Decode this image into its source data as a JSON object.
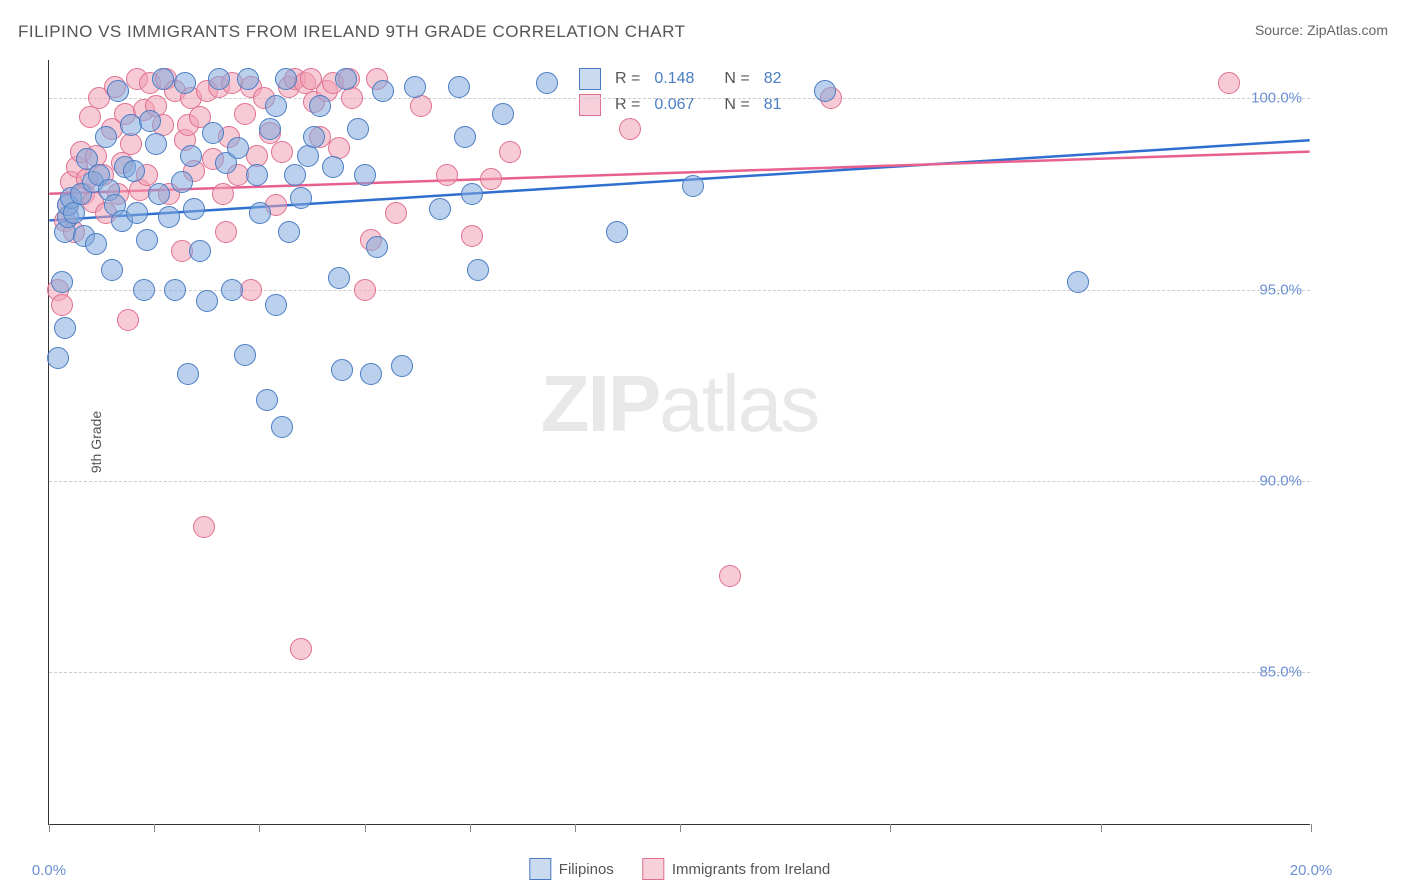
{
  "title": "FILIPINO VS IMMIGRANTS FROM IRELAND 9TH GRADE CORRELATION CHART",
  "source": "Source: ZipAtlas.com",
  "ylabel": "9th Grade",
  "watermark_zip": "ZIP",
  "watermark_atlas": "atlas",
  "chart": {
    "type": "scatter",
    "xlim": [
      0,
      20
    ],
    "ylim": [
      81,
      101
    ],
    "background_color": "#ffffff",
    "grid_color": "#cccccc",
    "grid_dash": true,
    "ytick_values": [
      85.0,
      90.0,
      95.0,
      100.0
    ],
    "ytick_labels": [
      "85.0%",
      "90.0%",
      "95.0%",
      "100.0%"
    ],
    "xtick_positions": [
      0,
      1.67,
      3.33,
      5.0,
      6.67,
      8.33,
      10.0,
      13.33,
      16.67,
      20.0
    ],
    "xtick_labels": {
      "0": "0.0%",
      "20": "20.0%"
    },
    "marker_radius": 11,
    "marker_opacity": 0.55,
    "series": [
      {
        "name": "Filipinos",
        "key": "blue",
        "color": "#87aee0",
        "border_color": "#4a7dc4",
        "r": "0.148",
        "n": "82",
        "trend": {
          "x1": 0,
          "y1": 96.8,
          "x2": 20,
          "y2": 98.9,
          "color": "#2f6fd0",
          "width": 2.5
        },
        "points": [
          [
            0.15,
            93.2
          ],
          [
            0.2,
            95.2
          ],
          [
            0.25,
            96.5
          ],
          [
            0.3,
            96.9
          ],
          [
            0.3,
            97.2
          ],
          [
            0.35,
            97.4
          ],
          [
            0.25,
            94.0
          ],
          [
            0.4,
            97.0
          ],
          [
            0.5,
            97.5
          ],
          [
            0.55,
            96.4
          ],
          [
            0.6,
            98.4
          ],
          [
            0.7,
            97.8
          ],
          [
            0.75,
            96.2
          ],
          [
            0.8,
            98.0
          ],
          [
            0.9,
            99.0
          ],
          [
            0.95,
            97.6
          ],
          [
            1.0,
            95.5
          ],
          [
            1.05,
            97.2
          ],
          [
            1.1,
            100.2
          ],
          [
            1.15,
            96.8
          ],
          [
            1.2,
            98.2
          ],
          [
            1.3,
            99.3
          ],
          [
            1.35,
            98.1
          ],
          [
            1.4,
            97.0
          ],
          [
            1.5,
            95.0
          ],
          [
            1.55,
            96.3
          ],
          [
            1.6,
            99.4
          ],
          [
            1.7,
            98.8
          ],
          [
            1.75,
            97.5
          ],
          [
            1.8,
            100.5
          ],
          [
            1.9,
            96.9
          ],
          [
            2.0,
            95.0
          ],
          [
            2.1,
            97.8
          ],
          [
            2.15,
            100.4
          ],
          [
            2.2,
            92.8
          ],
          [
            2.25,
            98.5
          ],
          [
            2.3,
            97.1
          ],
          [
            2.4,
            96.0
          ],
          [
            2.5,
            94.7
          ],
          [
            2.6,
            99.1
          ],
          [
            2.7,
            100.5
          ],
          [
            2.8,
            98.3
          ],
          [
            2.9,
            95.0
          ],
          [
            3.0,
            98.7
          ],
          [
            3.1,
            93.3
          ],
          [
            3.15,
            100.5
          ],
          [
            3.3,
            98.0
          ],
          [
            3.35,
            97.0
          ],
          [
            3.45,
            92.1
          ],
          [
            3.5,
            99.2
          ],
          [
            3.6,
            94.6
          ],
          [
            3.7,
            91.4
          ],
          [
            3.75,
            100.5
          ],
          [
            3.8,
            96.5
          ],
          [
            3.9,
            98.0
          ],
          [
            4.0,
            97.4
          ],
          [
            4.1,
            98.5
          ],
          [
            4.2,
            99.0
          ],
          [
            4.5,
            98.2
          ],
          [
            4.6,
            95.3
          ],
          [
            4.65,
            92.9
          ],
          [
            4.7,
            100.5
          ],
          [
            4.9,
            99.2
          ],
          [
            5.0,
            98.0
          ],
          [
            5.1,
            92.8
          ],
          [
            5.2,
            96.1
          ],
          [
            5.3,
            100.2
          ],
          [
            5.6,
            93.0
          ],
          [
            5.8,
            100.3
          ],
          [
            6.2,
            97.1
          ],
          [
            6.5,
            100.3
          ],
          [
            6.6,
            99.0
          ],
          [
            6.7,
            97.5
          ],
          [
            6.8,
            95.5
          ],
          [
            7.2,
            99.6
          ],
          [
            7.9,
            100.4
          ],
          [
            9.0,
            96.5
          ],
          [
            10.2,
            97.7
          ],
          [
            12.3,
            100.2
          ],
          [
            16.3,
            95.2
          ],
          [
            3.6,
            99.8
          ],
          [
            4.3,
            99.8
          ]
        ]
      },
      {
        "name": "Immigrants from Ireland",
        "key": "pink",
        "color": "#f3b0c2",
        "border_color": "#e07090",
        "r": "0.067",
        "n": "81",
        "trend": {
          "x1": 0,
          "y1": 97.5,
          "x2": 20,
          "y2": 98.6,
          "color": "#e86090",
          "width": 2.5
        },
        "points": [
          [
            0.15,
            95.0
          ],
          [
            0.2,
            94.6
          ],
          [
            0.25,
            96.8
          ],
          [
            0.3,
            97.2
          ],
          [
            0.35,
            97.8
          ],
          [
            0.4,
            96.5
          ],
          [
            0.45,
            98.2
          ],
          [
            0.5,
            98.6
          ],
          [
            0.55,
            97.5
          ],
          [
            0.6,
            97.9
          ],
          [
            0.65,
            99.5
          ],
          [
            0.7,
            97.3
          ],
          [
            0.75,
            98.5
          ],
          [
            0.8,
            100.0
          ],
          [
            0.85,
            98.0
          ],
          [
            0.9,
            97.0
          ],
          [
            1.0,
            99.2
          ],
          [
            1.05,
            100.3
          ],
          [
            1.1,
            97.5
          ],
          [
            1.15,
            98.3
          ],
          [
            1.2,
            99.6
          ],
          [
            1.25,
            94.2
          ],
          [
            1.3,
            98.8
          ],
          [
            1.4,
            100.5
          ],
          [
            1.45,
            97.6
          ],
          [
            1.5,
            99.7
          ],
          [
            1.55,
            98.0
          ],
          [
            1.6,
            100.4
          ],
          [
            1.7,
            99.8
          ],
          [
            1.8,
            99.3
          ],
          [
            1.85,
            100.5
          ],
          [
            1.9,
            97.5
          ],
          [
            2.0,
            100.2
          ],
          [
            2.1,
            96.0
          ],
          [
            2.15,
            98.9
          ],
          [
            2.2,
            99.3
          ],
          [
            2.25,
            100.0
          ],
          [
            2.3,
            98.1
          ],
          [
            2.4,
            99.5
          ],
          [
            2.45,
            88.8
          ],
          [
            2.5,
            100.2
          ],
          [
            2.6,
            98.4
          ],
          [
            2.7,
            100.3
          ],
          [
            2.8,
            96.5
          ],
          [
            2.85,
            99.0
          ],
          [
            2.9,
            100.4
          ],
          [
            3.0,
            98.0
          ],
          [
            3.1,
            99.6
          ],
          [
            3.2,
            100.3
          ],
          [
            3.3,
            98.5
          ],
          [
            3.4,
            100.0
          ],
          [
            3.5,
            99.1
          ],
          [
            3.6,
            97.2
          ],
          [
            3.7,
            98.6
          ],
          [
            3.8,
            100.3
          ],
          [
            3.9,
            100.5
          ],
          [
            4.0,
            85.6
          ],
          [
            4.05,
            100.4
          ],
          [
            4.15,
            100.5
          ],
          [
            4.2,
            99.9
          ],
          [
            4.3,
            99.0
          ],
          [
            4.4,
            100.2
          ],
          [
            4.5,
            100.4
          ],
          [
            4.6,
            98.7
          ],
          [
            4.75,
            100.5
          ],
          [
            4.8,
            100.0
          ],
          [
            5.0,
            95.0
          ],
          [
            5.1,
            96.3
          ],
          [
            5.2,
            100.5
          ],
          [
            5.5,
            97.0
          ],
          [
            5.9,
            99.8
          ],
          [
            6.3,
            98.0
          ],
          [
            6.7,
            96.4
          ],
          [
            7.0,
            97.9
          ],
          [
            7.3,
            98.6
          ],
          [
            9.2,
            99.2
          ],
          [
            10.8,
            87.5
          ],
          [
            12.4,
            100.0
          ],
          [
            18.7,
            100.4
          ],
          [
            3.2,
            95.0
          ],
          [
            2.75,
            97.5
          ]
        ]
      }
    ],
    "legend_top": {
      "swatch_blue_bg": "#cadbf0",
      "swatch_blue_border": "#4a7dc4",
      "swatch_pink_bg": "#f6d0db",
      "swatch_pink_border": "#e07090",
      "r_label": "R =",
      "n_label": "N ="
    },
    "legend_bottom": [
      {
        "swatch_bg": "#cadbf0",
        "swatch_border": "#4a7dc4",
        "label": "Filipinos"
      },
      {
        "swatch_bg": "#f6d0db",
        "swatch_border": "#e07090",
        "label": "Immigrants from Ireland"
      }
    ]
  }
}
